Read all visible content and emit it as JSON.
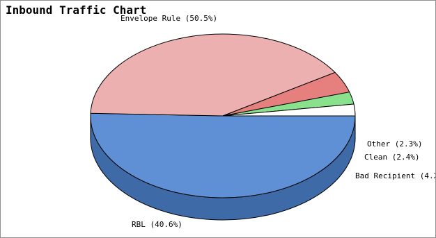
{
  "chart_data": {
    "type": "pie",
    "title": "Inbound Traffic Chart",
    "slices": [
      {
        "name": "Envelope Rule",
        "value": 50.5,
        "label": "Envelope Rule (50.5%)",
        "color": "#5f8fd4",
        "side_color": "#3f6aa8"
      },
      {
        "name": "RBL",
        "value": 40.6,
        "label": "RBL (40.6%)",
        "color": "#ecb0b0",
        "side_color": "#ae8080"
      },
      {
        "name": "Bad Recipient",
        "value": 4.2,
        "label": "Bad Recipient (4.2",
        "color": "#e5807e",
        "side_color": "#8d4040"
      },
      {
        "name": "Clean",
        "value": 2.4,
        "label": "Clean (2.4%)",
        "color": "#89e08d",
        "side_color": "#4f9a4f"
      },
      {
        "name": "Other",
        "value": 2.3,
        "label": "Other (2.3%)",
        "color": "#ffffff",
        "side_color": "#d8d8d8"
      }
    ],
    "legend": "none",
    "style": "3d"
  }
}
